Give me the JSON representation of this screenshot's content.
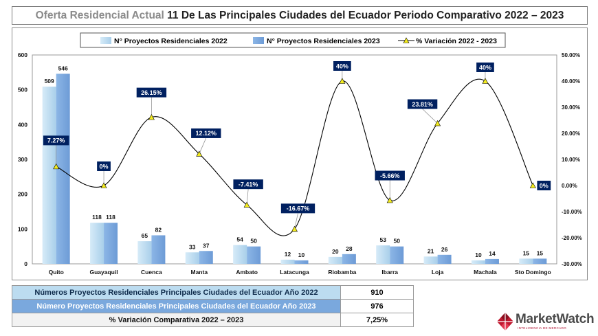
{
  "title": {
    "prefix": "Oferta Residencial Actual",
    "main": "11 De Las Principales Ciudades del Ecuador Periodo Comparativo 2022 – 2023"
  },
  "chart_data": {
    "type": "bar",
    "combo": "bar + line (secondary axis)",
    "categories": [
      "Quito",
      "Guayaquil",
      "Cuenca",
      "Manta",
      "Ambato",
      "Latacunga",
      "Riobamba",
      "Ibarra",
      "Loja",
      "Machala",
      "Sto Domingo"
    ],
    "series": [
      {
        "name": "N° Proyectos Residenciales 2022",
        "type": "bar",
        "axis": "left",
        "color": "#bcdcf0",
        "values": [
          509,
          118,
          65,
          33,
          54,
          12,
          20,
          53,
          21,
          10,
          15
        ]
      },
      {
        "name": "N° Proyectos Residenciales 2023",
        "type": "bar",
        "axis": "left",
        "color": "#7aa8dd",
        "values": [
          546,
          118,
          82,
          37,
          50,
          10,
          28,
          50,
          26,
          14,
          15
        ]
      },
      {
        "name": "% Variación 2022 - 2023",
        "type": "line",
        "axis": "right",
        "color": "#000000",
        "marker_color": "#f4ec1e",
        "values": [
          7.27,
          0,
          26.15,
          12.12,
          -7.41,
          -16.67,
          40,
          -5.66,
          23.81,
          40,
          0
        ],
        "labels": [
          "7.27%",
          "0%",
          "26.15%",
          "12.12%",
          "-7.41%",
          "-16.67%",
          "40%",
          "-5.66%",
          "23.81%",
          "40%",
          "0%"
        ]
      }
    ],
    "ylim": [
      0,
      600
    ],
    "yticks": [
      "0",
      "100",
      "200",
      "300",
      "400",
      "500",
      "600"
    ],
    "y2lim": [
      -30,
      50
    ],
    "y2ticks": [
      "-30.00%",
      "-20.00%",
      "-10.00%",
      "0.00%",
      "10.00%",
      "20.00%",
      "30.00%",
      "40.00%",
      "50.00%"
    ],
    "legend_position": "top",
    "label_box_color": "#002060"
  },
  "summary": [
    {
      "label": "Números Proyectos Residenciales Principales Ciudades del Ecuador Año 2022",
      "value": "910"
    },
    {
      "label": "Número Proyectos Residenciales Principales Ciudades del Ecuador Año 2023",
      "value": "976"
    },
    {
      "label": "% Variación Comparativa 2022 – 2023",
      "value": "7,25%"
    }
  ],
  "brand": {
    "name": "MarketWatch",
    "tagline": "INTELIGENCIA DE MERCADO"
  }
}
